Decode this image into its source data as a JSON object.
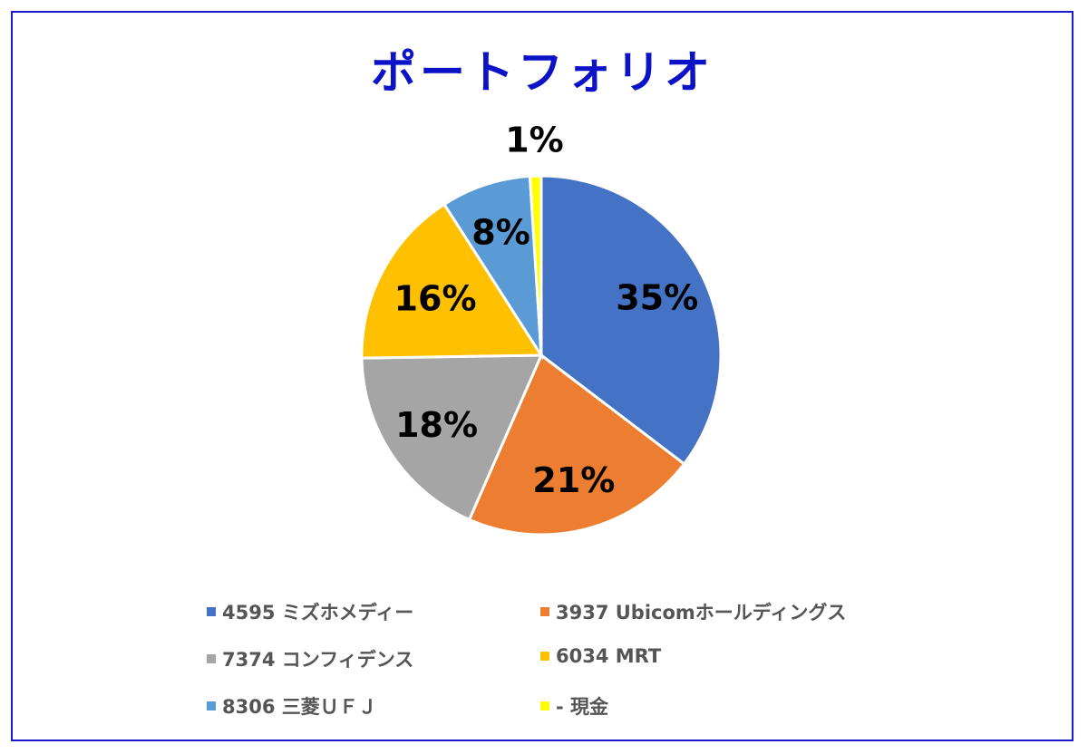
{
  "chart_data": {
    "type": "pie",
    "title": "ポートフォリオ",
    "slices": [
      {
        "name": "4595 ミズホメディー",
        "value": 35,
        "label": "35%",
        "color": "#4472C4"
      },
      {
        "name": "3937 Ubicomホールディングス",
        "value": 21,
        "label": "21%",
        "color": "#ED7D31"
      },
      {
        "name": "7374 コンフィデンス",
        "value": 18,
        "label": "18%",
        "color": "#A5A5A5"
      },
      {
        "name": "6034 MRT",
        "value": 16,
        "label": "16%",
        "color": "#FFC000"
      },
      {
        "name": "8306 三菱ＵＦＪ",
        "value": 8,
        "label": "8%",
        "color": "#5B9BD5"
      },
      {
        "name": "- 現金",
        "value": 1,
        "label": "1%",
        "color": "#FFFF00"
      }
    ],
    "legend_position": "bottom"
  }
}
